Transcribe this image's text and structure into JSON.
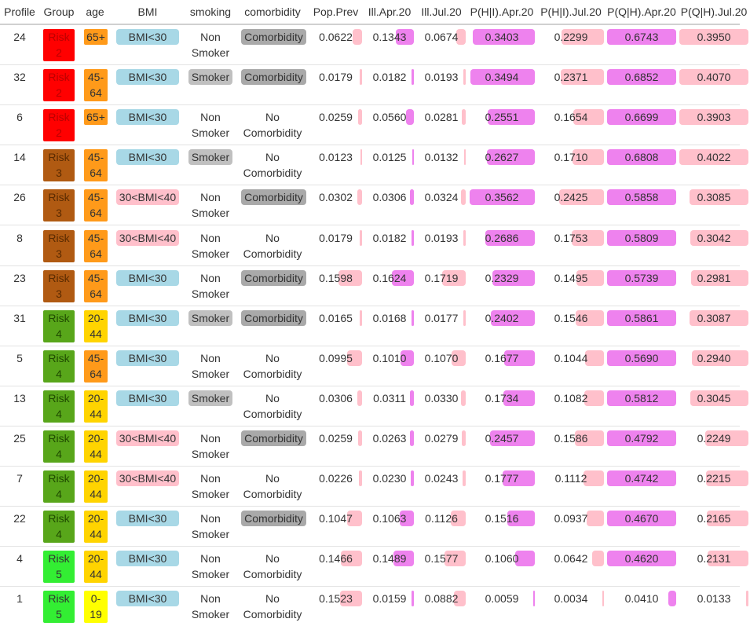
{
  "table": {
    "headers": [
      "Profile",
      "Group",
      "age",
      "BMI",
      "smoking",
      "comorbidity",
      "Pop.Prev",
      "Ill.Apr.20",
      "Ill.Jul.20",
      "P(H|I).Apr.20",
      "P(H|I).Jul.20",
      "P(Q|H).Apr.20",
      "P(Q|H).Jul.20"
    ],
    "rows": [
      {
        "profile": "24",
        "group": [
          "Risk",
          "2"
        ],
        "age": [
          "65+"
        ],
        "bmi": "BMI<30",
        "smoking": [
          "Non",
          "Smoker"
        ],
        "comorbidity": [
          "Comorbidity"
        ],
        "pop_prev": "0.0622",
        "ill_apr": "0.1343",
        "ill_jul": "0.0674",
        "ph_apr": "0.3403",
        "ph_jul": "0.2299",
        "pq_apr": "0.6743",
        "pq_jul": "0.3950"
      },
      {
        "profile": "32",
        "group": [
          "Risk",
          "2"
        ],
        "age": [
          "45-",
          "64"
        ],
        "bmi": "BMI<30",
        "smoking": [
          "Smoker"
        ],
        "comorbidity": [
          "Comorbidity"
        ],
        "pop_prev": "0.0179",
        "ill_apr": "0.0182",
        "ill_jul": "0.0193",
        "ph_apr": "0.3494",
        "ph_jul": "0.2371",
        "pq_apr": "0.6852",
        "pq_jul": "0.4070"
      },
      {
        "profile": "6",
        "group": [
          "Risk",
          "2"
        ],
        "age": [
          "65+"
        ],
        "bmi": "BMI<30",
        "smoking": [
          "Non",
          "Smoker"
        ],
        "comorbidity": [
          "No",
          "Comorbidity"
        ],
        "pop_prev": "0.0259",
        "ill_apr": "0.0560",
        "ill_jul": "0.0281",
        "ph_apr": "0.2551",
        "ph_jul": "0.1654",
        "pq_apr": "0.6699",
        "pq_jul": "0.3903"
      },
      {
        "profile": "14",
        "group": [
          "Risk",
          "3"
        ],
        "age": [
          "45-",
          "64"
        ],
        "bmi": "BMI<30",
        "smoking": [
          "Smoker"
        ],
        "comorbidity": [
          "No",
          "Comorbidity"
        ],
        "pop_prev": "0.0123",
        "ill_apr": "0.0125",
        "ill_jul": "0.0132",
        "ph_apr": "0.2627",
        "ph_jul": "0.1710",
        "pq_apr": "0.6808",
        "pq_jul": "0.4022"
      },
      {
        "profile": "26",
        "group": [
          "Risk",
          "3"
        ],
        "age": [
          "45-",
          "64"
        ],
        "bmi": "30<BMI<40",
        "smoking": [
          "Non",
          "Smoker"
        ],
        "comorbidity": [
          "Comorbidity"
        ],
        "pop_prev": "0.0302",
        "ill_apr": "0.0306",
        "ill_jul": "0.0324",
        "ph_apr": "0.3562",
        "ph_jul": "0.2425",
        "pq_apr": "0.5858",
        "pq_jul": "0.3085"
      },
      {
        "profile": "8",
        "group": [
          "Risk",
          "3"
        ],
        "age": [
          "45-",
          "64"
        ],
        "bmi": "30<BMI<40",
        "smoking": [
          "Non",
          "Smoker"
        ],
        "comorbidity": [
          "No",
          "Comorbidity"
        ],
        "pop_prev": "0.0179",
        "ill_apr": "0.0182",
        "ill_jul": "0.0193",
        "ph_apr": "0.2686",
        "ph_jul": "0.1753",
        "pq_apr": "0.5809",
        "pq_jul": "0.3042"
      },
      {
        "profile": "23",
        "group": [
          "Risk",
          "3"
        ],
        "age": [
          "45-",
          "64"
        ],
        "bmi": "BMI<30",
        "smoking": [
          "Non",
          "Smoker"
        ],
        "comorbidity": [
          "Comorbidity"
        ],
        "pop_prev": "0.1598",
        "ill_apr": "0.1624",
        "ill_jul": "0.1719",
        "ph_apr": "0.2329",
        "ph_jul": "0.1495",
        "pq_apr": "0.5739",
        "pq_jul": "0.2981"
      },
      {
        "profile": "31",
        "group": [
          "Risk",
          "4"
        ],
        "age": [
          "20-",
          "44"
        ],
        "bmi": "BMI<30",
        "smoking": [
          "Smoker"
        ],
        "comorbidity": [
          "Comorbidity"
        ],
        "pop_prev": "0.0165",
        "ill_apr": "0.0168",
        "ill_jul": "0.0177",
        "ph_apr": "0.2402",
        "ph_jul": "0.1546",
        "pq_apr": "0.5861",
        "pq_jul": "0.3087"
      },
      {
        "profile": "5",
        "group": [
          "Risk",
          "4"
        ],
        "age": [
          "45-",
          "64"
        ],
        "bmi": "BMI<30",
        "smoking": [
          "Non",
          "Smoker"
        ],
        "comorbidity": [
          "No",
          "Comorbidity"
        ],
        "pop_prev": "0.0995",
        "ill_apr": "0.1010",
        "ill_jul": "0.1070",
        "ph_apr": "0.1677",
        "ph_jul": "0.1044",
        "pq_apr": "0.5690",
        "pq_jul": "0.2940"
      },
      {
        "profile": "13",
        "group": [
          "Risk",
          "4"
        ],
        "age": [
          "20-",
          "44"
        ],
        "bmi": "BMI<30",
        "smoking": [
          "Smoker"
        ],
        "comorbidity": [
          "No",
          "Comorbidity"
        ],
        "pop_prev": "0.0306",
        "ill_apr": "0.0311",
        "ill_jul": "0.0330",
        "ph_apr": "0.1734",
        "ph_jul": "0.1082",
        "pq_apr": "0.5812",
        "pq_jul": "0.3045"
      },
      {
        "profile": "25",
        "group": [
          "Risk",
          "4"
        ],
        "age": [
          "20-",
          "44"
        ],
        "bmi": "30<BMI<40",
        "smoking": [
          "Non",
          "Smoker"
        ],
        "comorbidity": [
          "Comorbidity"
        ],
        "pop_prev": "0.0259",
        "ill_apr": "0.0263",
        "ill_jul": "0.0279",
        "ph_apr": "0.2457",
        "ph_jul": "0.1586",
        "pq_apr": "0.4792",
        "pq_jul": "0.2249"
      },
      {
        "profile": "7",
        "group": [
          "Risk",
          "4"
        ],
        "age": [
          "20-",
          "44"
        ],
        "bmi": "30<BMI<40",
        "smoking": [
          "Non",
          "Smoker"
        ],
        "comorbidity": [
          "No",
          "Comorbidity"
        ],
        "pop_prev": "0.0226",
        "ill_apr": "0.0230",
        "ill_jul": "0.0243",
        "ph_apr": "0.1777",
        "ph_jul": "0.1112",
        "pq_apr": "0.4742",
        "pq_jul": "0.2215"
      },
      {
        "profile": "22",
        "group": [
          "Risk",
          "4"
        ],
        "age": [
          "20-",
          "44"
        ],
        "bmi": "BMI<30",
        "smoking": [
          "Non",
          "Smoker"
        ],
        "comorbidity": [
          "Comorbidity"
        ],
        "pop_prev": "0.1047",
        "ill_apr": "0.1063",
        "ill_jul": "0.1126",
        "ph_apr": "0.1516",
        "ph_jul": "0.0937",
        "pq_apr": "0.4670",
        "pq_jul": "0.2165"
      },
      {
        "profile": "4",
        "group": [
          "Risk",
          "5"
        ],
        "age": [
          "20-",
          "44"
        ],
        "bmi": "BMI<30",
        "smoking": [
          "Non",
          "Smoker"
        ],
        "comorbidity": [
          "No",
          "Comorbidity"
        ],
        "pop_prev": "0.1466",
        "ill_apr": "0.1489",
        "ill_jul": "0.1577",
        "ph_apr": "0.1060",
        "ph_jul": "0.0642",
        "pq_apr": "0.4620",
        "pq_jul": "0.2131"
      },
      {
        "profile": "1",
        "group": [
          "Risk",
          "5"
        ],
        "age": [
          "0-",
          "19"
        ],
        "bmi": "BMI<30",
        "smoking": [
          "Non",
          "Smoker"
        ],
        "comorbidity": [
          "No",
          "Comorbidity"
        ],
        "pop_prev": "0.1523",
        "ill_apr": "0.0159",
        "ill_jul": "0.0882",
        "ph_apr": "0.0059",
        "ph_jul": "0.0034",
        "pq_apr": "0.0410",
        "pq_jul": "0.0133"
      }
    ]
  },
  "colors": {
    "risk": {
      "2": "#ff0000",
      "3": "#b05a12",
      "4": "#58a61a",
      "5": "#33ee33"
    },
    "age": {
      "65+": "#ff9a1a",
      "45-64": "#ff9a1a",
      "20-44": "#ffd400",
      "0-19": "#ffff00"
    },
    "bmi": {
      "BMI<30": "#a8d8e6",
      "30<BMI<40": "#ffc0cb"
    },
    "smoker_bg": "#c0c0c0",
    "comorbidity_bg": "#a9a9a9",
    "bar_pink": "#ffc0cb",
    "bar_violet": "#ee82ee",
    "bar_max": 0.36
  }
}
